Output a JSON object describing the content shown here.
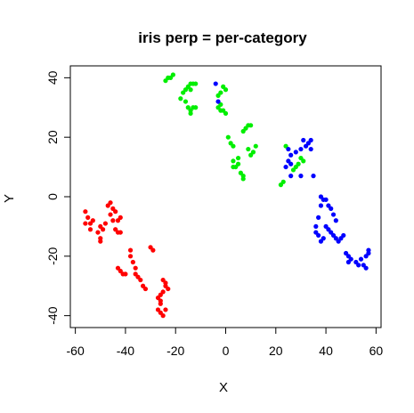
{
  "chart_data": {
    "type": "scatter",
    "title": "iris perp = per-category",
    "xlabel": "X",
    "ylabel": "Y",
    "xlim": [
      -62,
      62
    ],
    "ylim": [
      -44,
      44
    ],
    "xticks": [
      -60,
      -40,
      -20,
      0,
      20,
      40,
      60
    ],
    "yticks": [
      -40,
      -20,
      0,
      20,
      40
    ],
    "grid": false,
    "series": [
      {
        "color": "#ff0000",
        "points": [
          [
            -56,
            -5
          ],
          [
            -55,
            -7
          ],
          [
            -54,
            -9
          ],
          [
            -53,
            -8
          ],
          [
            -56,
            -9
          ],
          [
            -54,
            -11
          ],
          [
            -50,
            -10
          ],
          [
            -49,
            -11
          ],
          [
            -48,
            -9
          ],
          [
            -51,
            -12
          ],
          [
            -50,
            -14
          ],
          [
            -50,
            -15
          ],
          [
            -47,
            -3
          ],
          [
            -46,
            -2
          ],
          [
            -45,
            -4
          ],
          [
            -44,
            -5
          ],
          [
            -46,
            -6
          ],
          [
            -45,
            -8
          ],
          [
            -43,
            -8
          ],
          [
            -42,
            -7
          ],
          [
            -44,
            -11
          ],
          [
            -43,
            -12
          ],
          [
            -42,
            -12
          ],
          [
            -43,
            -24
          ],
          [
            -42,
            -25
          ],
          [
            -41,
            -26
          ],
          [
            -40,
            -26
          ],
          [
            -38,
            -18
          ],
          [
            -38,
            -20
          ],
          [
            -37,
            -22
          ],
          [
            -36,
            -24
          ],
          [
            -36,
            -26
          ],
          [
            -35,
            -27
          ],
          [
            -34,
            -28
          ],
          [
            -33,
            -30
          ],
          [
            -32,
            -31
          ],
          [
            -30,
            -17
          ],
          [
            -29,
            -18
          ],
          [
            -25,
            -28
          ],
          [
            -24,
            -29
          ],
          [
            -24,
            -30
          ],
          [
            -23,
            -31
          ],
          [
            -25,
            -32
          ],
          [
            -26,
            -33
          ],
          [
            -27,
            -34
          ],
          [
            -26,
            -35
          ],
          [
            -26,
            -36
          ],
          [
            -27,
            -38
          ],
          [
            -26,
            -39
          ],
          [
            -25,
            -40
          ],
          [
            -24,
            -38
          ]
        ]
      },
      {
        "color": "#00ee00",
        "points": [
          [
            -24,
            39
          ],
          [
            -23,
            40
          ],
          [
            -22,
            40
          ],
          [
            -21,
            41
          ],
          [
            -18,
            33
          ],
          [
            -17,
            35
          ],
          [
            -16,
            36
          ],
          [
            -15,
            37
          ],
          [
            -14,
            36
          ],
          [
            -14,
            38
          ],
          [
            -13,
            38
          ],
          [
            -12,
            38
          ],
          [
            -16,
            32
          ],
          [
            -15,
            30
          ],
          [
            -14,
            29
          ],
          [
            -13,
            30
          ],
          [
            -12,
            30
          ],
          [
            -14,
            28
          ],
          [
            -3,
            34
          ],
          [
            -2,
            35
          ],
          [
            -1,
            37
          ],
          [
            0,
            36
          ],
          [
            -3,
            30
          ],
          [
            -2,
            31
          ],
          [
            -2,
            29
          ],
          [
            -1,
            29
          ],
          [
            0,
            28
          ],
          [
            1,
            20
          ],
          [
            2,
            18
          ],
          [
            3,
            17
          ],
          [
            3,
            12
          ],
          [
            4,
            10
          ],
          [
            5,
            11
          ],
          [
            5,
            13
          ],
          [
            6,
            8
          ],
          [
            7,
            7
          ],
          [
            7,
            6
          ],
          [
            3,
            10
          ],
          [
            7,
            22
          ],
          [
            8,
            23
          ],
          [
            9,
            24
          ],
          [
            10,
            24
          ],
          [
            9,
            16
          ],
          [
            10,
            14
          ],
          [
            11,
            15
          ],
          [
            12,
            17
          ],
          [
            22,
            4
          ],
          [
            23,
            5
          ],
          [
            24,
            17
          ],
          [
            27,
            9
          ],
          [
            28,
            10
          ],
          [
            29,
            11
          ],
          [
            30,
            13
          ],
          [
            31,
            12
          ]
        ]
      },
      {
        "color": "#0000ff",
        "points": [
          [
            -4,
            38
          ],
          [
            -3,
            32
          ],
          [
            25,
            16
          ],
          [
            26,
            14
          ],
          [
            25,
            12
          ],
          [
            26,
            11
          ],
          [
            24,
            10
          ],
          [
            28,
            15
          ],
          [
            30,
            16
          ],
          [
            31,
            19
          ],
          [
            32,
            17
          ],
          [
            33,
            18
          ],
          [
            34,
            19
          ],
          [
            34,
            16
          ],
          [
            26,
            7
          ],
          [
            30,
            7
          ],
          [
            35,
            7
          ],
          [
            37,
            -7
          ],
          [
            38,
            -3
          ],
          [
            38,
            0
          ],
          [
            39,
            -1
          ],
          [
            40,
            -1
          ],
          [
            41,
            -3
          ],
          [
            42,
            -4
          ],
          [
            43,
            -6
          ],
          [
            44,
            -8
          ],
          [
            36,
            -10
          ],
          [
            36,
            -12
          ],
          [
            37,
            -13
          ],
          [
            38,
            -15
          ],
          [
            39,
            -14
          ],
          [
            40,
            -10
          ],
          [
            41,
            -11
          ],
          [
            42,
            -12
          ],
          [
            43,
            -13
          ],
          [
            44,
            -14
          ],
          [
            45,
            -15
          ],
          [
            46,
            -14
          ],
          [
            47,
            -13
          ],
          [
            48,
            -19
          ],
          [
            49,
            -20
          ],
          [
            49,
            -22
          ],
          [
            50,
            -21
          ],
          [
            52,
            -22
          ],
          [
            53,
            -23
          ],
          [
            54,
            -21
          ],
          [
            55,
            -23
          ],
          [
            56,
            -24
          ],
          [
            57,
            -18
          ],
          [
            57,
            -19
          ],
          [
            56,
            -20
          ]
        ]
      }
    ]
  }
}
